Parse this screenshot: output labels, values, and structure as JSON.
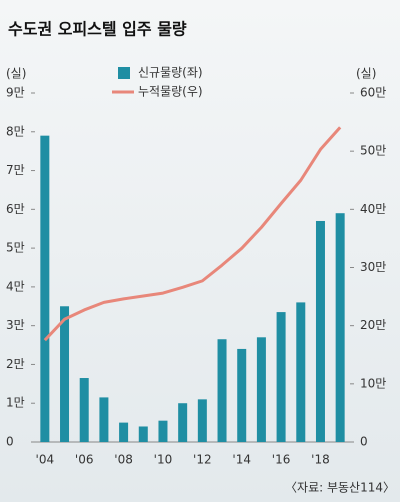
{
  "chart_data": {
    "type": "bar",
    "title": "수도권 오피스텔 입주 물량",
    "y_unit": "(실)",
    "y2_unit": "(실)",
    "categories": [
      "'04",
      null,
      "'06",
      null,
      "'08",
      null,
      "'10",
      null,
      "'12",
      null,
      "'14",
      null,
      "'16",
      null,
      "'18",
      null
    ],
    "series": [
      {
        "name": "신규물량(좌)",
        "type": "bar",
        "color": "#1f8ea3",
        "values": [
          79000,
          35000,
          16500,
          11500,
          5000,
          4000,
          5500,
          10000,
          11000,
          26500,
          24000,
          27000,
          33500,
          36000,
          57000,
          59000
        ]
      },
      {
        "name": "누적물량(우)",
        "type": "line",
        "axis": "y2",
        "color": "#e8877a",
        "values": [
          175000,
          211000,
          227000,
          240000,
          246000,
          251000,
          256000,
          266000,
          277000,
          304000,
          333000,
          369000,
          410000,
          450000,
          503000,
          541000
        ]
      }
    ],
    "ylim": [
      0,
      90000
    ],
    "yticks": [
      0,
      {
        "value": 10000,
        "label": "1만"
      },
      {
        "value": 20000,
        "label": "2만"
      },
      {
        "value": 30000,
        "label": "3만"
      },
      {
        "value": 40000,
        "label": "4만"
      },
      {
        "value": 50000,
        "label": "5만"
      },
      {
        "value": 60000,
        "label": "6만"
      },
      {
        "value": 70000,
        "label": "7만"
      },
      {
        "value": 80000,
        "label": "8만"
      },
      {
        "value": 90000,
        "label": "9만"
      }
    ],
    "y2lim": [
      0,
      600000
    ],
    "y2ticks": [
      0,
      {
        "value": 100000,
        "label": "10만"
      },
      {
        "value": 200000,
        "label": "20만"
      },
      {
        "value": 300000,
        "label": "30만"
      },
      {
        "value": 400000,
        "label": "40만"
      },
      {
        "value": 500000,
        "label": "50만"
      },
      {
        "value": 600000,
        "label": "60만"
      }
    ],
    "source": "〈자료: 부동산114〉"
  }
}
